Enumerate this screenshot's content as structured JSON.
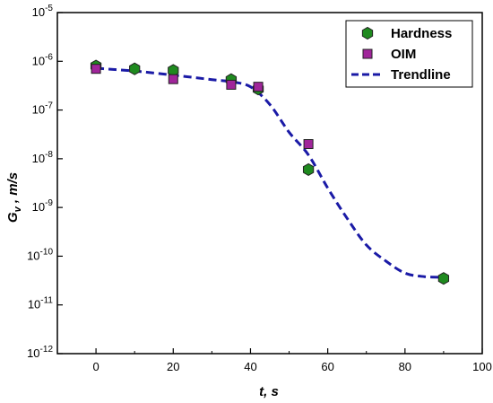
{
  "chart_data": {
    "type": "scatter",
    "xlabel": "t, s",
    "ylabel": "Gv , m/s",
    "xlim": [
      -10,
      100
    ],
    "xticks": [
      0,
      20,
      40,
      60,
      80,
      100
    ],
    "ylog": true,
    "ylim_exp": [
      -12,
      -5
    ],
    "yticks_exp": [
      -12,
      -11,
      -10,
      -9,
      -8,
      -7,
      -6,
      -5
    ],
    "ytick_base": "10",
    "grid": false,
    "legend_position": "top-right",
    "series": [
      {
        "name": "Hardness",
        "marker": "hexagon",
        "color": "#1f8a1f",
        "points": [
          {
            "x": 0,
            "y": 8e-07
          },
          {
            "x": 10,
            "y": 7e-07
          },
          {
            "x": 20,
            "y": 6.5e-07
          },
          {
            "x": 35,
            "y": 4.2e-07
          },
          {
            "x": 42,
            "y": 2.7e-07
          },
          {
            "x": 55,
            "y": 6e-09
          },
          {
            "x": 90,
            "y": 3.5e-11
          }
        ]
      },
      {
        "name": "OIM",
        "marker": "square",
        "color": "#a0259a",
        "points": [
          {
            "x": 0,
            "y": 7e-07
          },
          {
            "x": 20,
            "y": 4.3e-07
          },
          {
            "x": 35,
            "y": 3.3e-07
          },
          {
            "x": 42,
            "y": 3e-07
          },
          {
            "x": 55,
            "y": 2e-08
          }
        ]
      },
      {
        "name": "Trendline",
        "type": "line",
        "style": "dashed",
        "color": "#1a1aa6",
        "points": [
          {
            "x": 0,
            "y": 7.2e-07
          },
          {
            "x": 10,
            "y": 6.3e-07
          },
          {
            "x": 20,
            "y": 5.2e-07
          },
          {
            "x": 30,
            "y": 4.2e-07
          },
          {
            "x": 35,
            "y": 3.8e-07
          },
          {
            "x": 40,
            "y": 3e-07
          },
          {
            "x": 45,
            "y": 1.3e-07
          },
          {
            "x": 50,
            "y": 3.5e-08
          },
          {
            "x": 55,
            "y": 1.2e-08
          },
          {
            "x": 60,
            "y": 2.5e-09
          },
          {
            "x": 65,
            "y": 6e-10
          },
          {
            "x": 70,
            "y": 1.7e-10
          },
          {
            "x": 75,
            "y": 8e-11
          },
          {
            "x": 80,
            "y": 4.5e-11
          },
          {
            "x": 85,
            "y": 3.8e-11
          },
          {
            "x": 90,
            "y": 3.7e-11
          }
        ]
      }
    ]
  }
}
